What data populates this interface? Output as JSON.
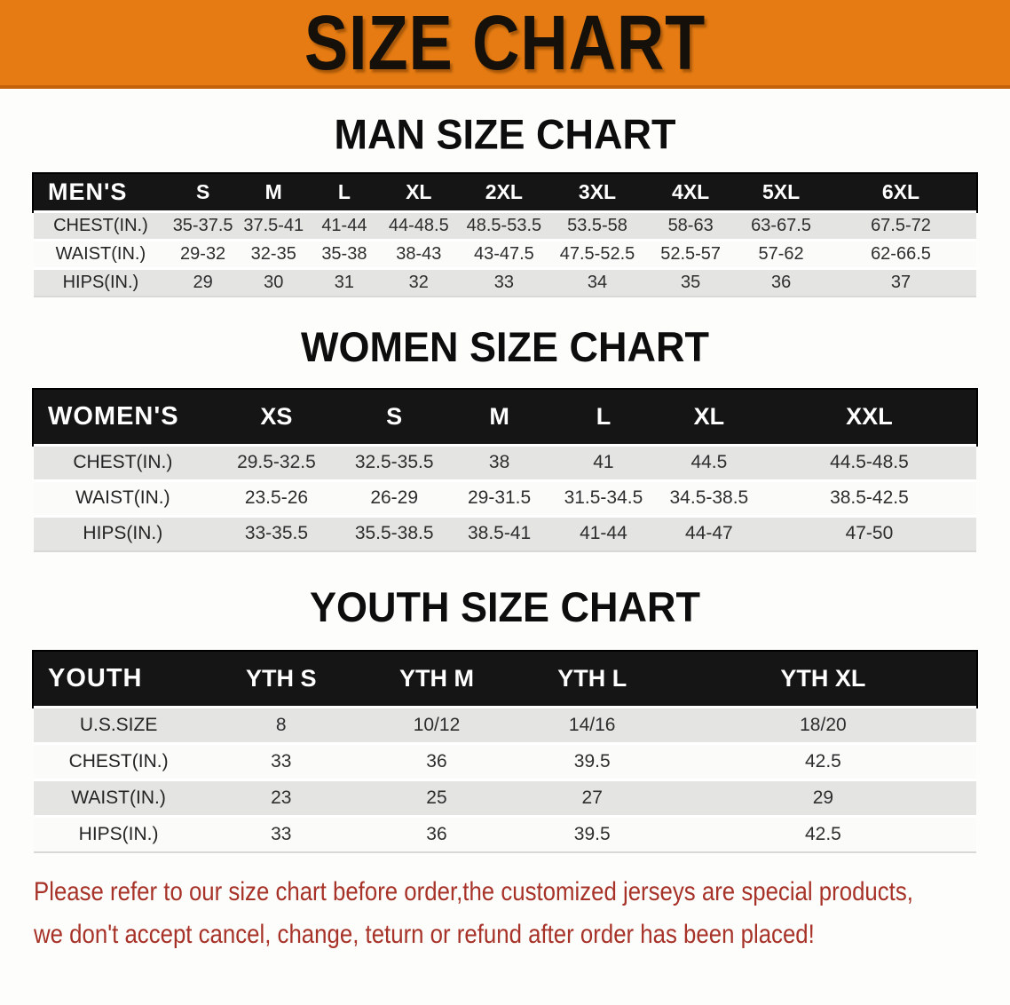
{
  "banner": {
    "title": "SIZE CHART"
  },
  "colors": {
    "banner_orange": "#E57B12",
    "banner_edge": "#C36208",
    "header_bar_black": "#151515",
    "row_gray": "#E4E4E2",
    "row_white": "#FBFBF9",
    "value_text": "#2E2E2E",
    "note_red": "#A73228"
  },
  "sections": [
    {
      "id": "men",
      "title": "MAN SIZE CHART",
      "table": {
        "header": [
          "MEN'S",
          "S",
          "M",
          "L",
          "XL",
          "2XL",
          "3XL",
          "4XL",
          "5XL",
          "6XL"
        ],
        "rows": [
          [
            "CHEST(IN.)",
            "35-37.5",
            "37.5-41",
            "41-44",
            "44-48.5",
            "48.5-53.5",
            "53.5-58",
            "58-63",
            "63-67.5",
            "67.5-72"
          ],
          [
            "WAIST(IN.)",
            "29-32",
            "32-35",
            "35-38",
            "38-43",
            "43-47.5",
            "47.5-52.5",
            "52.5-57",
            "57-62",
            "62-66.5"
          ],
          [
            "HIPS(IN.)",
            "29",
            "30",
            "31",
            "32",
            "33",
            "34",
            "35",
            "36",
            "37"
          ]
        ]
      }
    },
    {
      "id": "women",
      "title": "WOMEN SIZE CHART",
      "table": {
        "header": [
          "WOMEN'S",
          "XS",
          "S",
          "M",
          "L",
          "XL",
          "XXL"
        ],
        "rows": [
          [
            "CHEST(IN.)",
            "29.5-32.5",
            "32.5-35.5",
            "38",
            "41",
            "44.5",
            "44.5-48.5"
          ],
          [
            "WAIST(IN.)",
            "23.5-26",
            "26-29",
            "29-31.5",
            "31.5-34.5",
            "34.5-38.5",
            "38.5-42.5"
          ],
          [
            "HIPS(IN.)",
            "33-35.5",
            "35.5-38.5",
            "38.5-41",
            "41-44",
            "44-47",
            "47-50"
          ]
        ]
      }
    },
    {
      "id": "youth",
      "title": "YOUTH SIZE CHART",
      "table": {
        "header": [
          "YOUTH",
          "YTH S",
          "YTH M",
          "YTH L",
          "YTH XL"
        ],
        "rows": [
          [
            "U.S.SIZE",
            "8",
            "10/12",
            "14/16",
            "18/20"
          ],
          [
            "CHEST(IN.)",
            "33",
            "36",
            "39.5",
            "42.5"
          ],
          [
            "WAIST(IN.)",
            "23",
            "25",
            "27",
            "29"
          ],
          [
            "HIPS(IN.)",
            "33",
            "36",
            "39.5",
            "42.5"
          ]
        ]
      }
    }
  ],
  "note": {
    "line1": "Please refer to our size chart before order,the customized jerseys are special products,",
    "line2": "we don't accept cancel, change, teturn or refund after order has been placed!"
  }
}
